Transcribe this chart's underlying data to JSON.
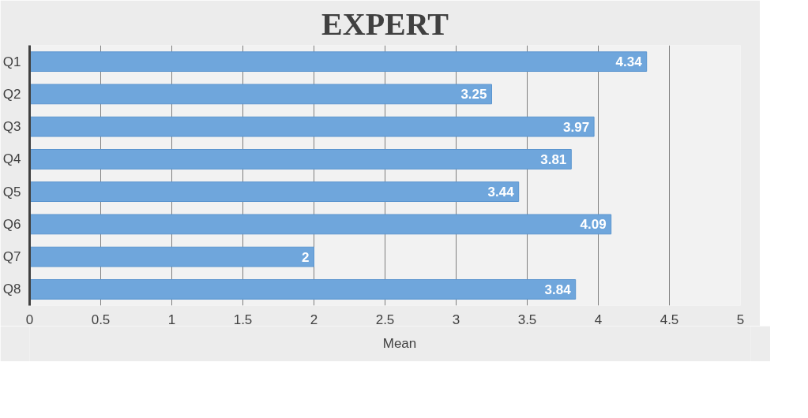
{
  "chart_data": {
    "type": "bar",
    "orientation": "horizontal",
    "title": "EXPERT",
    "categories": [
      "Q1",
      "Q2",
      "Q3",
      "Q4",
      "Q5",
      "Q6",
      "Q7",
      "Q8"
    ],
    "series": [
      {
        "name": "Mean",
        "color": "#6fa6dc",
        "values": [
          4.34,
          3.25,
          3.97,
          3.81,
          3.44,
          4.09,
          2,
          3.84
        ]
      }
    ],
    "xlim": [
      0,
      5
    ],
    "xticks": [
      0,
      0.5,
      1,
      1.5,
      2,
      2.5,
      3,
      3.5,
      4,
      4.5,
      5
    ],
    "grid": "x",
    "legend": "bottom",
    "data_labels": true
  }
}
